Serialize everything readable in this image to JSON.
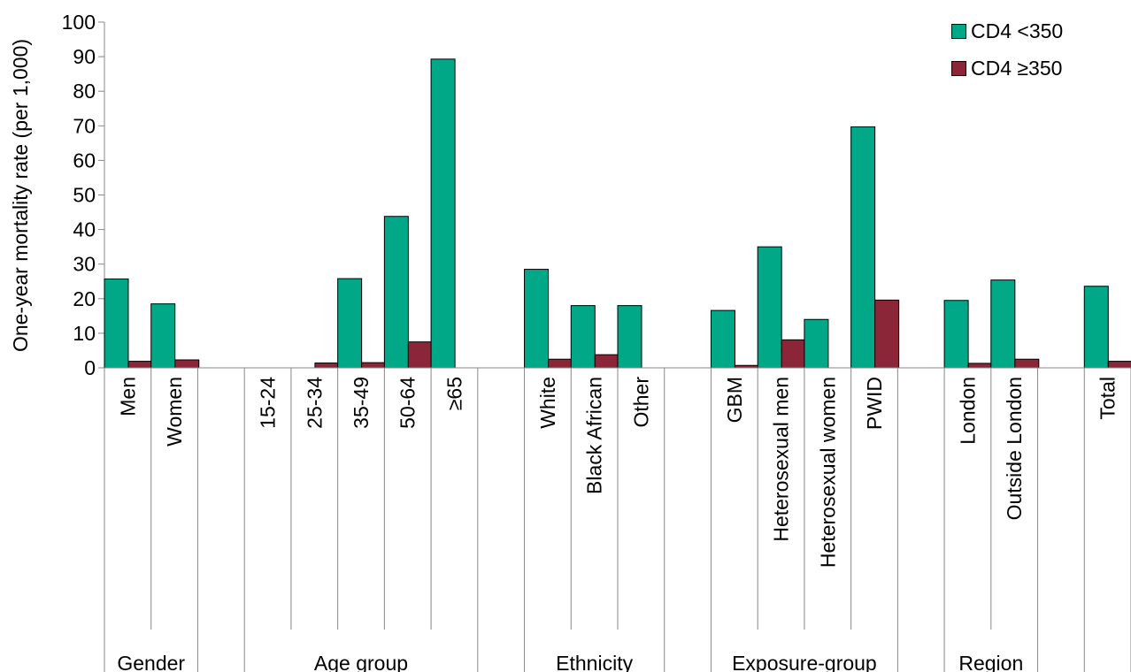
{
  "chart_data": {
    "type": "bar",
    "title": "",
    "ylabel": "One-year mortality rate (per 1,000)",
    "xlabel": "",
    "ylim": [
      0,
      100
    ],
    "yticks": [
      0,
      10,
      20,
      30,
      40,
      50,
      60,
      70,
      80,
      90,
      100
    ],
    "grid": false,
    "legend_position": "top-right",
    "categories": [
      "Men",
      "Women",
      "",
      "15-24",
      "25-34",
      "35-49",
      "50-64",
      "≥65",
      "",
      "White",
      "Black African",
      "Other",
      "",
      "GBM",
      "Heterosexual men",
      "Heterosexual women",
      "PWID",
      "",
      "London",
      "Outside London",
      "",
      "Total"
    ],
    "groups": [
      {
        "label": "Gender",
        "start": 0,
        "end": 1
      },
      {
        "label": "Age group",
        "start": 3,
        "end": 7
      },
      {
        "label": "Ethnicity",
        "start": 9,
        "end": 11
      },
      {
        "label": "Exposure-group",
        "start": 13,
        "end": 16
      },
      {
        "label": "Region",
        "start": 18,
        "end": 19
      }
    ],
    "series": [
      {
        "name": "CD4 <350",
        "color": "#00A887",
        "values": [
          25.7,
          18.5,
          null,
          0,
          0,
          25.8,
          43.8,
          89.3,
          null,
          28.5,
          18.0,
          18.0,
          null,
          16.6,
          35.0,
          14.0,
          69.7,
          null,
          19.5,
          25.4,
          null,
          23.6
        ]
      },
      {
        "name": "CD4 ≥350",
        "color": "#8B2638",
        "values": [
          1.9,
          2.3,
          null,
          0,
          1.4,
          1.5,
          7.5,
          null,
          null,
          2.5,
          3.8,
          null,
          null,
          0.7,
          8.1,
          null,
          19.6,
          null,
          1.3,
          2.5,
          null,
          1.9
        ]
      }
    ]
  }
}
